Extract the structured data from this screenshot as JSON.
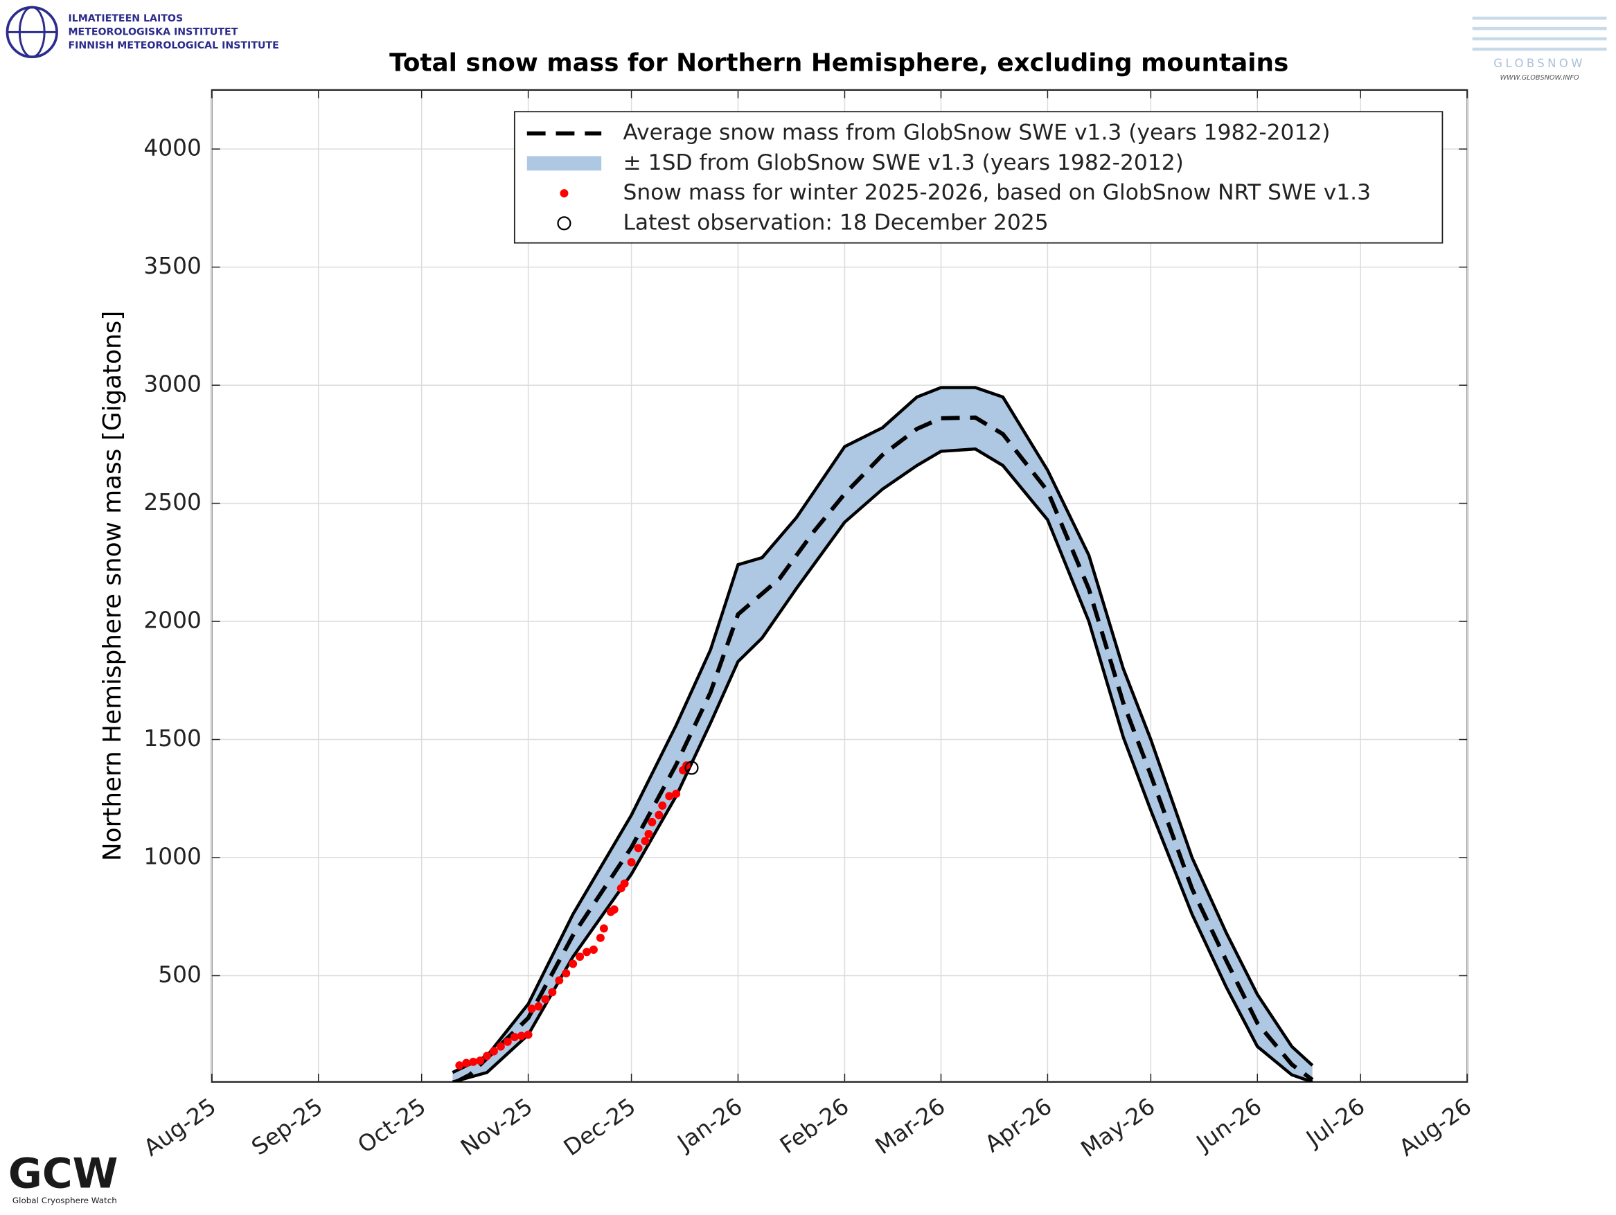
{
  "logos": {
    "fmi": [
      "ILMATIETEEN LAITOS",
      "METEOROLOGISKA INSTITUTET",
      "FINNISH METEOROLOGICAL INSTITUTE"
    ],
    "globsnow": "GLOBSNOW",
    "globsnow_url": "WWW.GLOBSNOW.INFO",
    "gcw": "GCW",
    "gcw_name": "Global Cryosphere Watch"
  },
  "chart_data": {
    "type": "line",
    "title": "Total snow mass for Northern Hemisphere, excluding mountains",
    "ylabel": "Northern Hemisphere snow mass [Gigatons]",
    "xlim": [
      0,
      365
    ],
    "ylim": [
      50,
      4250
    ],
    "xticks": [
      {
        "value": 0,
        "label": "Aug-25"
      },
      {
        "value": 31,
        "label": "Sep-25"
      },
      {
        "value": 61,
        "label": "Oct-25"
      },
      {
        "value": 92,
        "label": "Nov-25"
      },
      {
        "value": 122,
        "label": "Dec-25"
      },
      {
        "value": 153,
        "label": "Jan-26"
      },
      {
        "value": 184,
        "label": "Feb-26"
      },
      {
        "value": 212,
        "label": "Mar-26"
      },
      {
        "value": 243,
        "label": "Apr-26"
      },
      {
        "value": 273,
        "label": "May-26"
      },
      {
        "value": 304,
        "label": "Jun-26"
      },
      {
        "value": 334,
        "label": "Jul-26"
      },
      {
        "value": 365,
        "label": "Aug-26"
      }
    ],
    "yticks": [
      500,
      1000,
      1500,
      2000,
      2500,
      3000,
      3500,
      4000
    ],
    "grid": true,
    "legend": "upper-right",
    "series": [
      {
        "name": "Average snow mass from GlobSnow SWE v1.3 (years 1982-2012)",
        "style": "dashed",
        "color": "#000000",
        "x": [
          71,
          75,
          92,
          105,
          122,
          135,
          145,
          153,
          165,
          175,
          184,
          195,
          205,
          212,
          222,
          230,
          243,
          255,
          265,
          273,
          285,
          295,
          304,
          314,
          320
        ],
        "values": [
          50,
          80,
          321,
          671,
          1043,
          1393,
          1700,
          2030,
          2180,
          2380,
          2540,
          2705,
          2815,
          2860,
          2863,
          2793,
          2552,
          2137,
          1655,
          1349,
          868,
          562,
          299,
          124,
          59
        ]
      },
      {
        "name": "± 1SD from GlobSnow SWE v1.3 (years 1982-2012)",
        "style": "band",
        "color": "#aec8e3",
        "edge_color": "#000000",
        "x": [
          70,
          80,
          92,
          105,
          122,
          135,
          145,
          153,
          160,
          170,
          184,
          195,
          205,
          212,
          222,
          230,
          243,
          255,
          265,
          273,
          285,
          295,
          304,
          314,
          320
        ],
        "values": [
          90,
          160,
          380,
          760,
          1180,
          1560,
          1880,
          2240,
          2270,
          2440,
          2740,
          2820,
          2950,
          2990,
          2990,
          2950,
          2640,
          2280,
          1800,
          1500,
          1000,
          680,
          420,
          200,
          120
        ],
        "lower": [
          50,
          90,
          250,
          580,
          930,
          1260,
          1570,
          1830,
          1930,
          2140,
          2420,
          2560,
          2660,
          2720,
          2730,
          2660,
          2430,
          2000,
          1510,
          1200,
          760,
          450,
          200,
          80,
          50
        ]
      },
      {
        "name": "Snow mass for winter 2025-2026, based on GlobSnow NRT SWE v1.3",
        "style": "dots",
        "color": "#ff0000",
        "x": [
          72,
          74,
          76,
          78,
          80,
          82,
          84,
          86,
          88,
          90,
          92,
          93,
          95,
          97,
          99,
          101,
          103,
          105,
          107,
          109,
          111,
          113,
          114,
          116,
          117,
          119,
          120,
          122,
          124,
          126,
          127,
          128,
          130,
          131,
          133,
          135,
          137,
          138
        ],
        "values": [
          120,
          130,
          135,
          140,
          160,
          180,
          200,
          220,
          240,
          245,
          250,
          360,
          370,
          400,
          430,
          480,
          510,
          550,
          580,
          600,
          610,
          660,
          700,
          770,
          780,
          870,
          890,
          980,
          1040,
          1070,
          1100,
          1150,
          1180,
          1220,
          1260,
          1270,
          1370,
          1390
        ]
      },
      {
        "name": "Latest observation: 18 December 2025",
        "style": "circle",
        "color": "#000000",
        "x": [
          139.5
        ],
        "values": [
          1380
        ]
      }
    ]
  }
}
